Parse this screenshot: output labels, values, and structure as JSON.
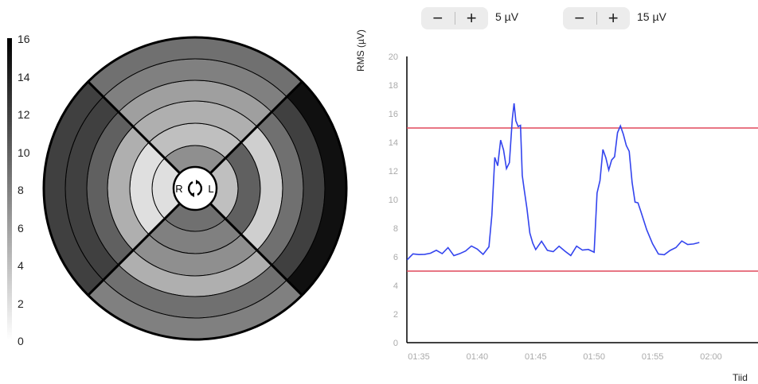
{
  "colorbar": {
    "ticks": [
      "16",
      "14",
      "12",
      "10",
      "8",
      "6",
      "4",
      "2",
      "0"
    ]
  },
  "polar": {
    "center_labels": {
      "left": "R",
      "right": "L"
    },
    "rings": [
      [
        7,
        4,
        9,
        2
      ],
      [
        4,
        10,
        8,
        2
      ],
      [
        5,
        3,
        7,
        5
      ],
      [
        6,
        9,
        5,
        10
      ],
      [
        8,
        12,
        9,
        12
      ],
      [
        9,
        15,
        8,
        12
      ]
    ],
    "scale_max": 16
  },
  "controls": {
    "lower": {
      "minus": "−",
      "plus": "+",
      "value": "5 µV"
    },
    "upper": {
      "minus": "−",
      "plus": "+",
      "value": "15 µV"
    }
  },
  "chart_data": {
    "type": "line",
    "ylabel": "RMS (µV)",
    "xlabel": "Tiid",
    "ylim": [
      0,
      20
    ],
    "yticks": [
      "0",
      "2",
      "4",
      "6",
      "8",
      "10",
      "12",
      "14",
      "16",
      "18",
      "20"
    ],
    "xticks": [
      "01:35",
      "01:40",
      "01:45",
      "01:50",
      "01:55",
      "02:00"
    ],
    "thresholds": [
      5,
      15
    ],
    "colors": {
      "line": "#3344ee",
      "threshold": "#e0485b"
    },
    "series": [
      {
        "x": [
          "01:34",
          "01:35",
          "01:36",
          "01:37",
          "01:38",
          "01:39",
          "01:40",
          "01:41",
          "01:41.5",
          "01:42",
          "01:42.5",
          "01:43",
          "01:43.3",
          "01:43.7",
          "01:44",
          "01:44.5",
          "01:45",
          "01:46",
          "01:47",
          "01:48",
          "01:49",
          "01:50",
          "01:50.5",
          "01:51",
          "01:51.5",
          "01:52",
          "01:52.5",
          "01:53",
          "01:53.5",
          "01:54",
          "01:55",
          "01:56",
          "01:57",
          "01:58",
          "01:59"
        ],
        "y": [
          5.8,
          6.5,
          6.3,
          6.6,
          6.0,
          6.6,
          6.4,
          6.7,
          12.5,
          14.0,
          13.0,
          14.5,
          16.5,
          14.0,
          11.0,
          7.5,
          6.8,
          6.5,
          6.7,
          6.4,
          6.6,
          6.7,
          12.0,
          13.0,
          12.5,
          14.0,
          15.5,
          13.5,
          11.0,
          9.0,
          6.5,
          6.2,
          6.7,
          6.9,
          7.0
        ]
      }
    ]
  }
}
